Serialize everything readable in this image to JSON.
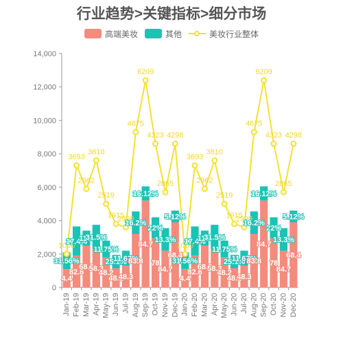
{
  "colors": {
    "premium": "#f58b7c",
    "other": "#1bc3b5",
    "industry": "#f4e12e",
    "axis": "#999999"
  },
  "chart_data": {
    "type": "bar",
    "title": "行业趋势>关键指标>细分市场",
    "categories": [
      "Jan-19",
      "Feb-19",
      "Mar-19",
      "Apr-19",
      "May-19",
      "Jun-19",
      "Jul-19",
      "Aug-19",
      "Sep-19",
      "Oct-19",
      "Nov-19",
      "Dec-19",
      "Jan-20",
      "Feb-20",
      "Mar-20",
      "Apr-20",
      "May-20",
      "Jun-20",
      "Jul-20",
      "Aug-20",
      "Sep-20",
      "Oct-20",
      "Nov-20",
      "Dec-20"
    ],
    "ylim": [
      0,
      14000
    ],
    "yticks": [
      "0",
      "2,000",
      "4,000",
      "6,000",
      "8,000",
      "10,000",
      "12,000",
      "14,000"
    ],
    "legend_position": "top",
    "series": [
      {
        "name": "高端美妆",
        "kind": "bar",
        "stack": "s",
        "values": [
          1100,
          1900,
          2500,
          2300,
          1800,
          1150,
          1300,
          3200,
          5200,
          2950,
          2200,
          3900,
          1100,
          1900,
          2500,
          2300,
          1800,
          1150,
          1300,
          3200,
          5200,
          2950,
          2200,
          3900
        ],
        "labels": [
          "4.4",
          "82.6",
          "68.3",
          "58.3",
          "48.2",
          "48.1",
          "48.3",
          "83.8",
          "84.7",
          "78",
          "84.7",
          "68.4",
          "4.4",
          "82.6",
          "68.3",
          "58.3",
          "48.2",
          "48.1",
          "48.3",
          "83.8",
          "84.7",
          "78",
          "84.7",
          "68.4"
        ]
      },
      {
        "name": "其他",
        "kind": "bar",
        "stack": "s",
        "values": [
          1000,
          1750,
          900,
          1450,
          1000,
          800,
          900,
          1350,
          850,
          1250,
          1350,
          700,
          1000,
          1750,
          900,
          1450,
          1000,
          800,
          900,
          1350,
          850,
          1250,
          1350,
          700
        ],
        "labels": [
          "31.56%",
          "17.4%",
          "11%",
          "31.5%",
          "11.75%",
          "25.1%",
          "11.67%",
          "16.2%",
          "16.12%",
          "22%",
          "13.3%",
          "5.12%",
          "31.56%",
          "17.4%",
          "11%",
          "31.5%",
          "11.75%",
          "25.1%",
          "11.67%",
          "16.2%",
          "16.12%",
          "22%",
          "13.3%",
          "5.12%"
        ]
      },
      {
        "name": "美妆行业整体",
        "kind": "line",
        "values": [
          2000,
          7300,
          5900,
          7600,
          5000,
          3800,
          3600,
          9300,
          12400,
          8600,
          5700,
          8600,
          2000,
          7300,
          5900,
          7600,
          5000,
          3800,
          3600,
          9300,
          12400,
          8600,
          5700,
          8600
        ],
        "labels": [
          "1000",
          "3693",
          "2962",
          "3810",
          "2519",
          "1915",
          "2999",
          "4675",
          "6209",
          "4323",
          "2865",
          "4298",
          "1000",
          "3693",
          "2962",
          "3810",
          "2519",
          "1915",
          "2999",
          "4675",
          "6209",
          "4323",
          "2865",
          "4298"
        ]
      }
    ]
  }
}
